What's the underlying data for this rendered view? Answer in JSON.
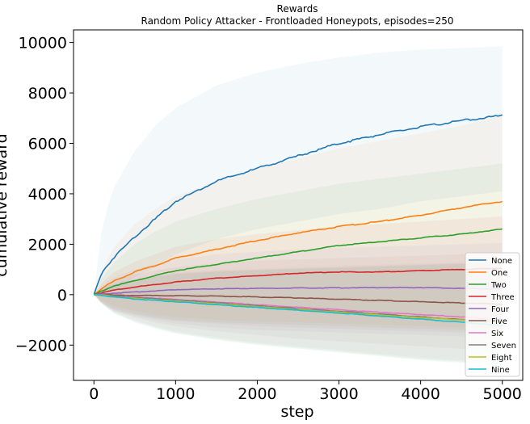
{
  "chart_data": {
    "type": "line",
    "title": "Rewards",
    "subtitle": "Random Policy Attacker - Frontloaded Honeypots, episodes=250",
    "xlabel": "step",
    "ylabel": "cumulative reward",
    "xlim": [
      -250,
      5250
    ],
    "ylim": [
      -3400,
      10500
    ],
    "xticks": [
      0,
      1000,
      2000,
      3000,
      4000,
      5000
    ],
    "xtick_labels": [
      "0",
      "1000",
      "2000",
      "3000",
      "4000",
      "5000"
    ],
    "yticks": [
      -2000,
      0,
      2000,
      4000,
      6000,
      8000,
      10000
    ],
    "ytick_labels": [
      "−2000",
      "0",
      "2000",
      "4000",
      "6000",
      "8000",
      "10000"
    ],
    "grid": false,
    "legend_position": "lower-right",
    "x": [
      0,
      100,
      250,
      500,
      750,
      1000,
      1500,
      2000,
      2500,
      3000,
      3500,
      4000,
      4500,
      5000
    ],
    "series": [
      {
        "name": "None",
        "color": "#1f77b4",
        "values": [
          0,
          900,
          1500,
          2300,
          3000,
          3700,
          4500,
          5000,
          5500,
          6000,
          6350,
          6650,
          6900,
          7100
        ],
        "band_upper": [
          0,
          2800,
          4300,
          5700,
          6700,
          7400,
          8300,
          8800,
          9150,
          9400,
          9600,
          9720,
          9780,
          9850
        ],
        "band_lower": [
          0,
          -50,
          200,
          700,
          1100,
          1600,
          2200,
          2600,
          2900,
          3200,
          3400,
          3700,
          3900,
          4100
        ]
      },
      {
        "name": "One",
        "color": "#ff7f0e",
        "values": [
          0,
          250,
          550,
          900,
          1150,
          1450,
          1800,
          2150,
          2450,
          2700,
          2900,
          3150,
          3450,
          3700
        ],
        "band_upper": [
          0,
          1000,
          1900,
          2800,
          3400,
          3900,
          4500,
          5000,
          5400,
          5800,
          6100,
          6400,
          6700,
          7100
        ],
        "band_lower": [
          0,
          -250,
          -450,
          -650,
          -800,
          -900,
          -1000,
          -1050,
          -1100,
          -1150,
          -1200,
          -1250,
          -1300,
          -1350
        ]
      },
      {
        "name": "Two",
        "color": "#2ca02c",
        "values": [
          0,
          150,
          350,
          550,
          750,
          950,
          1200,
          1450,
          1700,
          1950,
          2100,
          2250,
          2400,
          2600
        ],
        "band_upper": [
          0,
          700,
          1300,
          2000,
          2500,
          2900,
          3400,
          3800,
          4100,
          4400,
          4600,
          4800,
          5000,
          5200
        ],
        "band_lower": [
          0,
          -300,
          -550,
          -750,
          -900,
          -1000,
          -1100,
          -1150,
          -1200,
          -1250,
          -1300,
          -1350,
          -1400,
          -1450
        ]
      },
      {
        "name": "Three",
        "color": "#d62728",
        "values": [
          0,
          80,
          180,
          300,
          400,
          500,
          650,
          750,
          850,
          900,
          900,
          950,
          1000,
          1050
        ],
        "band_upper": [
          0,
          500,
          900,
          1300,
          1600,
          1900,
          2200,
          2400,
          2550,
          2700,
          2800,
          2900,
          3000,
          3100
        ],
        "band_lower": [
          0,
          -350,
          -600,
          -800,
          -950,
          -1050,
          -1150,
          -1250,
          -1300,
          -1350,
          -1400,
          -1450,
          -1500,
          -1550
        ]
      },
      {
        "name": "Four",
        "color": "#9467bd",
        "values": [
          0,
          20,
          60,
          100,
          150,
          200,
          230,
          250,
          260,
          270,
          280,
          280,
          250,
          220
        ],
        "band_upper": [
          0,
          400,
          700,
          1000,
          1200,
          1400,
          1600,
          1700,
          1800,
          1850,
          1900,
          1950,
          2000,
          2050
        ],
        "band_lower": [
          0,
          -350,
          -650,
          -850,
          -1000,
          -1150,
          -1300,
          -1400,
          -1450,
          -1500,
          -1550,
          -1600,
          -1650,
          -1700
        ]
      },
      {
        "name": "Five",
        "color": "#8c564b",
        "values": [
          0,
          -10,
          -20,
          -30,
          -40,
          -40,
          -60,
          -90,
          -130,
          -180,
          -230,
          -280,
          -330,
          -380
        ],
        "band_upper": [
          0,
          300,
          550,
          800,
          950,
          1100,
          1250,
          1350,
          1400,
          1450,
          1500,
          1550,
          1600,
          1650
        ],
        "band_lower": [
          0,
          -350,
          -650,
          -900,
          -1100,
          -1250,
          -1450,
          -1600,
          -1750,
          -1850,
          -1950,
          -2050,
          -2150,
          -2250
        ]
      },
      {
        "name": "Six",
        "color": "#e377c2",
        "values": [
          0,
          -20,
          -50,
          -90,
          -140,
          -190,
          -290,
          -400,
          -500,
          -600,
          -700,
          -790,
          -880,
          -980
        ],
        "band_upper": [
          0,
          250,
          450,
          650,
          800,
          900,
          1000,
          1050,
          1100,
          1150,
          1200,
          1250,
          1300,
          1350
        ],
        "band_lower": [
          0,
          -350,
          -700,
          -1000,
          -1250,
          -1450,
          -1700,
          -1900,
          -2050,
          -2200,
          -2350,
          -2500,
          -2600,
          -2700
        ]
      },
      {
        "name": "Seven",
        "color": "#7f7f7f",
        "values": [
          0,
          -25,
          -60,
          -110,
          -160,
          -210,
          -320,
          -440,
          -550,
          -660,
          -770,
          -880,
          -990,
          -1100
        ],
        "band_upper": [
          0,
          230,
          420,
          600,
          750,
          850,
          950,
          1000,
          1050,
          1100,
          1150,
          1200,
          1250,
          1300
        ],
        "band_lower": [
          0,
          -380,
          -720,
          -1050,
          -1300,
          -1500,
          -1750,
          -1950,
          -2100,
          -2250,
          -2400,
          -2550,
          -2650,
          -2750
        ]
      },
      {
        "name": "Eight",
        "color": "#bcbd22",
        "values": [
          0,
          -30,
          -80,
          -150,
          -210,
          -260,
          -370,
          -480,
          -590,
          -700,
          -810,
          -910,
          -1000,
          -1100
        ],
        "band_upper": [
          0,
          220,
          400,
          580,
          720,
          820,
          920,
          980,
          1030,
          1080,
          1130,
          1180,
          1230,
          1280
        ],
        "band_lower": [
          0,
          -390,
          -740,
          -1070,
          -1320,
          -1520,
          -1780,
          -1980,
          -2130,
          -2280,
          -2430,
          -2580,
          -2680,
          -2780
        ]
      },
      {
        "name": "Nine",
        "color": "#17becf",
        "values": [
          0,
          -30,
          -90,
          -170,
          -230,
          -280,
          -400,
          -510,
          -620,
          -730,
          -850,
          -970,
          -1090,
          -1230
        ],
        "band_upper": [
          0,
          210,
          380,
          560,
          700,
          800,
          900,
          960,
          1010,
          1060,
          1110,
          1160,
          1210,
          1260
        ],
        "band_lower": [
          0,
          -400,
          -760,
          -1100,
          -1350,
          -1550,
          -1800,
          -2000,
          -2150,
          -2300,
          -2450,
          -2600,
          -2720,
          -2850
        ]
      }
    ]
  }
}
